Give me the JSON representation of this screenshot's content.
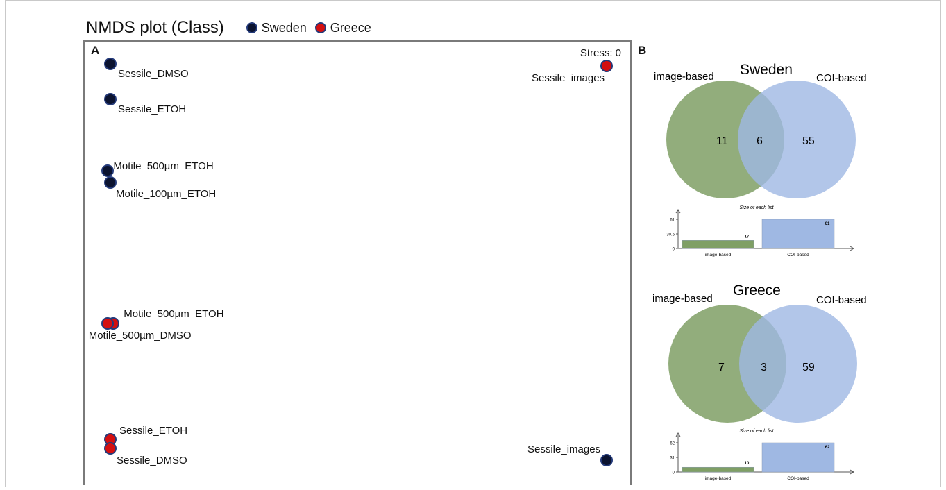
{
  "title": "NMDS plot (Class)",
  "legend": [
    {
      "label": "Sweden",
      "color": "#0b1330"
    },
    {
      "label": "Greece",
      "color": "#d40f10"
    }
  ],
  "panel_a": {
    "letter": "A",
    "stress": "Stress: 0",
    "points": [
      {
        "label": "Sessile_DMSO",
        "group": "Sweden"
      },
      {
        "label": "Sessile_ETOH",
        "group": "Sweden"
      },
      {
        "label": "Motile_500µm_ETOH",
        "group": "Sweden"
      },
      {
        "label": "Motile_100µm_ETOH",
        "group": "Sweden"
      },
      {
        "label": "Sessile_images",
        "group": "Sweden"
      },
      {
        "label": "Sessile_images",
        "group": "Greece"
      },
      {
        "label": "Motile_500µm_ETOH",
        "group": "Greece"
      },
      {
        "label": "Motile_500µm_DMSO",
        "group": "Greece"
      },
      {
        "label": "Sessile_ETOH",
        "group": "Greece"
      },
      {
        "label": "Sessile_DMSO",
        "group": "Greece"
      }
    ]
  },
  "panel_b": {
    "letter": "B",
    "colors": {
      "image": "#7f9f65",
      "coi": "#9fb8e3",
      "overlap": "#5f8a90"
    },
    "venns": [
      {
        "title": "Sweden",
        "left_label": "image-based",
        "right_label": "COI-based",
        "only_left": "11",
        "overlap": "6",
        "only_right": "55"
      },
      {
        "title": "Greece",
        "left_label": "image-based",
        "right_label": "COI-based",
        "only_left": "7",
        "overlap": "3",
        "only_right": "59"
      }
    ]
  },
  "chart_data": [
    {
      "type": "scatter",
      "title": "NMDS plot (Class)",
      "stress": "Stress: 0",
      "grid": false,
      "legend_position": "top",
      "series": [
        {
          "name": "Sweden",
          "color": "#0b1330",
          "points": [
            {
              "label": "Sessile_DMSO",
              "x": 0.0,
              "y": 1.0
            },
            {
              "label": "Sessile_ETOH",
              "x": 0.0,
              "y": 0.91
            },
            {
              "label": "Motile_500µm_ETOH",
              "x": -0.005,
              "y": 0.73
            },
            {
              "label": "Motile_100µm_ETOH",
              "x": 0.0,
              "y": 0.7
            },
            {
              "label": "Sessile_images",
              "x": 1.0,
              "y": 0.0
            }
          ]
        },
        {
          "name": "Greece",
          "color": "#d40f10",
          "points": [
            {
              "label": "Sessile_images",
              "x": 1.0,
              "y": 0.995
            },
            {
              "label": "Motile_500µm_ETOH",
              "x": 0.006,
              "y": 0.345
            },
            {
              "label": "Motile_500µm_DMSO",
              "x": -0.006,
              "y": 0.345
            },
            {
              "label": "Sessile_ETOH",
              "x": 0.0,
              "y": 0.053
            },
            {
              "label": "Sessile_DMSO",
              "x": 0.0,
              "y": 0.03
            }
          ]
        }
      ]
    },
    {
      "type": "bar",
      "title": "Size of each list",
      "categories": [
        "image-based",
        "COI-based"
      ],
      "values": [
        17,
        61
      ],
      "yticks": [
        "0",
        "30.5",
        "61"
      ],
      "ylim": [
        0,
        61
      ]
    },
    {
      "type": "bar",
      "title": "Size of each list",
      "categories": [
        "image-based",
        "COI-based"
      ],
      "values": [
        10,
        62
      ],
      "yticks": [
        "0",
        "31",
        "62"
      ],
      "ylim": [
        0,
        62
      ]
    }
  ]
}
